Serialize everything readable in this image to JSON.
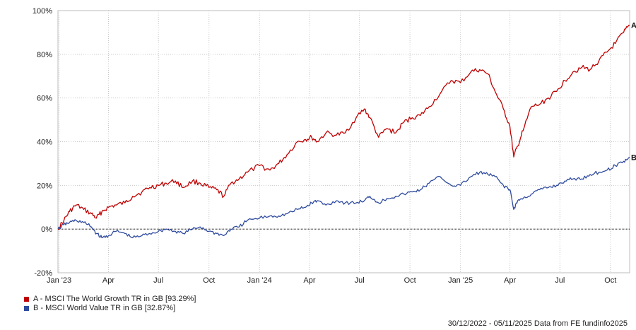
{
  "chart_data": {
    "type": "line",
    "ylim": [
      -20,
      100
    ],
    "y_ticks": [
      "-20%",
      "0%",
      "20%",
      "40%",
      "60%",
      "80%",
      "100%"
    ],
    "y_tick_values": [
      -20,
      0,
      20,
      40,
      60,
      80,
      100
    ],
    "x_ticks": [
      "Jan '23",
      "Apr",
      "Jul",
      "Oct",
      "Jan '24",
      "Apr",
      "Jul",
      "Oct",
      "Jan '25",
      "Apr",
      "Jul",
      "Oct"
    ],
    "x_tick_dates": [
      "2023-01-01",
      "2023-04-01",
      "2023-07-01",
      "2023-10-01",
      "2024-01-01",
      "2024-04-01",
      "2024-07-01",
      "2024-10-01",
      "2025-01-01",
      "2025-04-01",
      "2025-07-01",
      "2025-10-01"
    ],
    "x_range": [
      "2022-12-30",
      "2025-11-05"
    ],
    "grid": true,
    "zero_line": true,
    "series": [
      {
        "name": "A - MSCI The World Growth TR in GB [93.29%]",
        "end_label": "A",
        "color": "#c00000",
        "points": [
          [
            "2022-12-30",
            0
          ],
          [
            "2023-01-10",
            4
          ],
          [
            "2023-01-20",
            8
          ],
          [
            "2023-02-01",
            11
          ],
          [
            "2023-02-15",
            9
          ],
          [
            "2023-03-01",
            7
          ],
          [
            "2023-03-10",
            5
          ],
          [
            "2023-03-20",
            8
          ],
          [
            "2023-04-01",
            10
          ],
          [
            "2023-04-15",
            11
          ],
          [
            "2023-05-01",
            12
          ],
          [
            "2023-05-15",
            15
          ],
          [
            "2023-06-01",
            17
          ],
          [
            "2023-06-15",
            19
          ],
          [
            "2023-07-01",
            20
          ],
          [
            "2023-07-15",
            21
          ],
          [
            "2023-08-01",
            22
          ],
          [
            "2023-08-15",
            19
          ],
          [
            "2023-09-01",
            22
          ],
          [
            "2023-09-15",
            21
          ],
          [
            "2023-10-01",
            19
          ],
          [
            "2023-10-15",
            18
          ],
          [
            "2023-10-28",
            15
          ],
          [
            "2023-11-10",
            21
          ],
          [
            "2023-11-25",
            23
          ],
          [
            "2023-12-10",
            26
          ],
          [
            "2024-01-01",
            29
          ],
          [
            "2024-01-20",
            27
          ],
          [
            "2024-02-05",
            30
          ],
          [
            "2024-02-20",
            34
          ],
          [
            "2024-03-10",
            40
          ],
          [
            "2024-03-25",
            41
          ],
          [
            "2024-04-05",
            42
          ],
          [
            "2024-04-15",
            40
          ],
          [
            "2024-05-01",
            44
          ],
          [
            "2024-05-20",
            43
          ],
          [
            "2024-06-05",
            44
          ],
          [
            "2024-06-25",
            51
          ],
          [
            "2024-07-10",
            55
          ],
          [
            "2024-07-20",
            51
          ],
          [
            "2024-08-05",
            42
          ],
          [
            "2024-08-20",
            46
          ],
          [
            "2024-09-05",
            44
          ],
          [
            "2024-09-20",
            49
          ],
          [
            "2024-10-05",
            51
          ],
          [
            "2024-10-20",
            52
          ],
          [
            "2024-11-05",
            56
          ],
          [
            "2024-11-25",
            62
          ],
          [
            "2024-12-15",
            68
          ],
          [
            "2025-01-01",
            67
          ],
          [
            "2025-01-20",
            72
          ],
          [
            "2025-02-05",
            73
          ],
          [
            "2025-02-20",
            71
          ],
          [
            "2025-03-05",
            63
          ],
          [
            "2025-03-20",
            55
          ],
          [
            "2025-04-01",
            47
          ],
          [
            "2025-04-08",
            33
          ],
          [
            "2025-04-15",
            38
          ],
          [
            "2025-04-25",
            45
          ],
          [
            "2025-05-10",
            56
          ],
          [
            "2025-05-25",
            57
          ],
          [
            "2025-06-10",
            60
          ],
          [
            "2025-06-25",
            63
          ],
          [
            "2025-07-10",
            68
          ],
          [
            "2025-07-25",
            72
          ],
          [
            "2025-08-10",
            74
          ],
          [
            "2025-08-25",
            73
          ],
          [
            "2025-09-10",
            77
          ],
          [
            "2025-09-25",
            81
          ],
          [
            "2025-10-10",
            85
          ],
          [
            "2025-10-25",
            90
          ],
          [
            "2025-11-05",
            93.29
          ]
        ]
      },
      {
        "name": "B - MSCI World Value TR in GB [32.87%]",
        "end_label": "B",
        "color": "#2e4a9e",
        "points": [
          [
            "2022-12-30",
            0
          ],
          [
            "2023-01-10",
            2
          ],
          [
            "2023-01-20",
            3
          ],
          [
            "2023-02-01",
            4
          ],
          [
            "2023-02-15",
            3
          ],
          [
            "2023-03-01",
            1
          ],
          [
            "2023-03-10",
            -2
          ],
          [
            "2023-03-20",
            -4
          ],
          [
            "2023-04-01",
            -3
          ],
          [
            "2023-04-15",
            -1
          ],
          [
            "2023-05-01",
            -2
          ],
          [
            "2023-05-15",
            -4
          ],
          [
            "2023-06-01",
            -3
          ],
          [
            "2023-06-15",
            -2
          ],
          [
            "2023-07-01",
            -1
          ],
          [
            "2023-07-15",
            0
          ],
          [
            "2023-08-01",
            -1
          ],
          [
            "2023-08-15",
            -2
          ],
          [
            "2023-09-01",
            0
          ],
          [
            "2023-09-15",
            1
          ],
          [
            "2023-10-01",
            -1
          ],
          [
            "2023-10-15",
            -2
          ],
          [
            "2023-10-28",
            -3
          ],
          [
            "2023-11-10",
            0
          ],
          [
            "2023-11-25",
            1
          ],
          [
            "2023-12-10",
            4
          ],
          [
            "2024-01-01",
            5
          ],
          [
            "2024-01-20",
            6
          ],
          [
            "2024-02-05",
            6
          ],
          [
            "2024-02-20",
            7
          ],
          [
            "2024-03-10",
            9
          ],
          [
            "2024-03-25",
            10
          ],
          [
            "2024-04-05",
            12
          ],
          [
            "2024-04-15",
            13
          ],
          [
            "2024-05-01",
            11
          ],
          [
            "2024-05-20",
            13
          ],
          [
            "2024-06-05",
            12
          ],
          [
            "2024-06-25",
            12
          ],
          [
            "2024-07-10",
            13
          ],
          [
            "2024-07-20",
            15
          ],
          [
            "2024-08-05",
            12
          ],
          [
            "2024-08-20",
            14
          ],
          [
            "2024-09-05",
            15
          ],
          [
            "2024-09-20",
            16
          ],
          [
            "2024-10-05",
            17
          ],
          [
            "2024-10-20",
            18
          ],
          [
            "2024-11-05",
            21
          ],
          [
            "2024-11-25",
            24
          ],
          [
            "2024-12-15",
            20
          ],
          [
            "2025-01-01",
            20
          ],
          [
            "2025-01-20",
            24
          ],
          [
            "2025-02-05",
            26
          ],
          [
            "2025-02-20",
            25
          ],
          [
            "2025-03-05",
            24
          ],
          [
            "2025-03-20",
            20
          ],
          [
            "2025-04-01",
            18
          ],
          [
            "2025-04-08",
            9
          ],
          [
            "2025-04-15",
            13
          ],
          [
            "2025-04-25",
            14
          ],
          [
            "2025-05-10",
            16
          ],
          [
            "2025-05-25",
            18
          ],
          [
            "2025-06-10",
            19
          ],
          [
            "2025-06-25",
            20
          ],
          [
            "2025-07-10",
            22
          ],
          [
            "2025-07-25",
            23
          ],
          [
            "2025-08-10",
            23
          ],
          [
            "2025-08-25",
            25
          ],
          [
            "2025-09-10",
            26
          ],
          [
            "2025-09-25",
            27
          ],
          [
            "2025-10-10",
            29
          ],
          [
            "2025-10-25",
            31
          ],
          [
            "2025-11-05",
            32.87
          ]
        ]
      }
    ]
  },
  "footer": {
    "text": "30/12/2022 - 05/11/2025 Data from FE fundinfo2025"
  }
}
